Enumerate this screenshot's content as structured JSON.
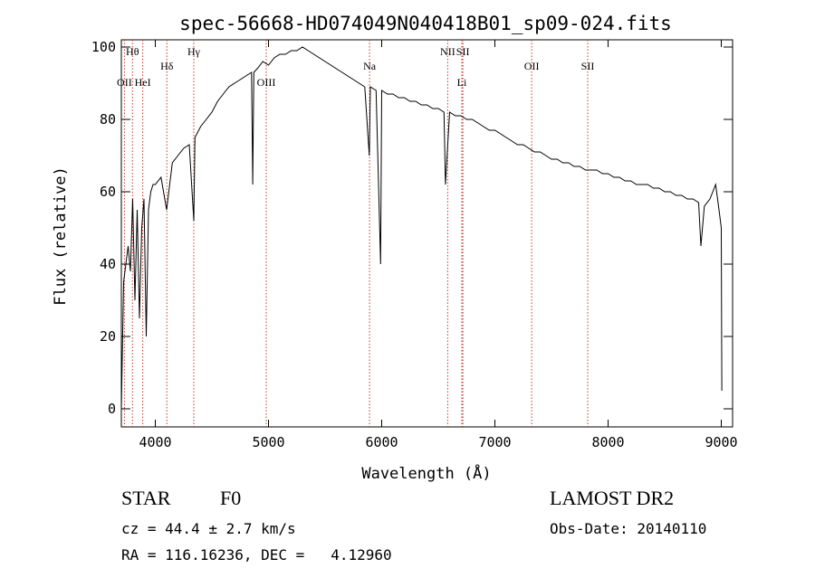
{
  "chart_data": {
    "type": "line",
    "title": "spec-56668-HD074049N040418B01_sp09-024.fits",
    "xlabel": "Wavelength (Å)",
    "ylabel": "Flux (relative)",
    "xlim": [
      3700,
      9100
    ],
    "ylim": [
      -5,
      102
    ],
    "xticks": [
      4000,
      5000,
      6000,
      7000,
      8000,
      9000
    ],
    "yticks": [
      0,
      20,
      40,
      60,
      80,
      100
    ],
    "grid": false,
    "line_color": "#000000",
    "marker_color": "#c0392b",
    "series": [
      {
        "values_x": [
          3700,
          3720,
          3740,
          3760,
          3780,
          3800,
          3820,
          3840,
          3860,
          3880,
          3900,
          3920,
          3940,
          3960,
          3980,
          4000,
          4050,
          4100,
          4150,
          4200,
          4250,
          4300,
          4340,
          4350,
          4400,
          4450,
          4500,
          4550,
          4600,
          4650,
          4700,
          4750,
          4800,
          4850,
          4861,
          4870,
          4900,
          4950,
          5000,
          5050,
          5100,
          5150,
          5200,
          5250,
          5300,
          5350,
          5400,
          5450,
          5500,
          5550,
          5600,
          5650,
          5700,
          5750,
          5800,
          5850,
          5890,
          5900,
          5950,
          5990,
          6000,
          6050,
          6100,
          6150,
          6200,
          6250,
          6300,
          6350,
          6400,
          6450,
          6500,
          6550,
          6563,
          6600,
          6650,
          6700,
          6750,
          6800,
          6850,
          6900,
          6950,
          7000,
          7050,
          7100,
          7150,
          7200,
          7250,
          7300,
          7350,
          7400,
          7450,
          7500,
          7550,
          7600,
          7650,
          7700,
          7750,
          7800,
          7850,
          7900,
          7950,
          8000,
          8050,
          8100,
          8150,
          8200,
          8250,
          8300,
          8350,
          8400,
          8450,
          8500,
          8550,
          8600,
          8650,
          8700,
          8750,
          8800,
          8820,
          8850,
          8900,
          8950,
          8980,
          9000,
          9005
        ],
        "values_y": [
          0,
          35,
          40,
          45,
          38,
          58,
          30,
          55,
          25,
          50,
          58,
          20,
          55,
          60,
          62,
          62,
          64,
          55,
          68,
          70,
          72,
          73,
          52,
          75,
          78,
          80,
          82,
          85,
          87,
          89,
          90,
          91,
          92,
          93,
          62,
          93,
          94,
          96,
          95,
          97,
          98,
          98,
          99,
          99,
          100,
          99,
          98,
          97,
          96,
          95,
          94,
          93,
          92,
          91,
          90,
          89,
          70,
          89,
          88,
          40,
          88,
          87,
          87,
          86,
          86,
          85,
          85,
          84,
          84,
          83,
          83,
          82,
          62,
          82,
          81,
          81,
          80,
          80,
          79,
          78,
          77,
          77,
          76,
          75,
          74,
          73,
          73,
          72,
          71,
          71,
          70,
          69,
          69,
          68,
          68,
          67,
          67,
          66,
          66,
          66,
          65,
          65,
          64,
          64,
          63,
          63,
          62,
          62,
          62,
          61,
          61,
          60,
          60,
          59,
          59,
          58,
          58,
          57,
          45,
          56,
          58,
          62,
          55,
          50,
          5
        ]
      }
    ],
    "lines": [
      {
        "label": "Hθ",
        "x": 3798,
        "row": 1
      },
      {
        "label": "OII",
        "x": 3727,
        "row": 3
      },
      {
        "label": "HeI",
        "x": 3889,
        "row": 3
      },
      {
        "label": "Hδ",
        "x": 4102,
        "row": 2
      },
      {
        "label": "Hγ",
        "x": 4340,
        "row": 1
      },
      {
        "label": "OIII",
        "x": 4980,
        "row": 3
      },
      {
        "label": "Na",
        "x": 5893,
        "row": 2
      },
      {
        "label": "NII",
        "x": 6583,
        "row": 1
      },
      {
        "label": "SII",
        "x": 6717,
        "row": 1
      },
      {
        "label": "Li",
        "x": 6708,
        "row": 3
      },
      {
        "label": "OII",
        "x": 7325,
        "row": 2
      },
      {
        "label": "SII",
        "x": 7820,
        "row": 2
      }
    ]
  },
  "info": {
    "class_label": "STAR",
    "subclass_label": "F0",
    "survey_label": "LAMOST DR2",
    "cz_label": "cz = 44.4 ± 2.7 km/s",
    "obs_date_label": "Obs-Date: 20140110",
    "coords_label": "RA = 116.16236, DEC =   4.12960"
  }
}
